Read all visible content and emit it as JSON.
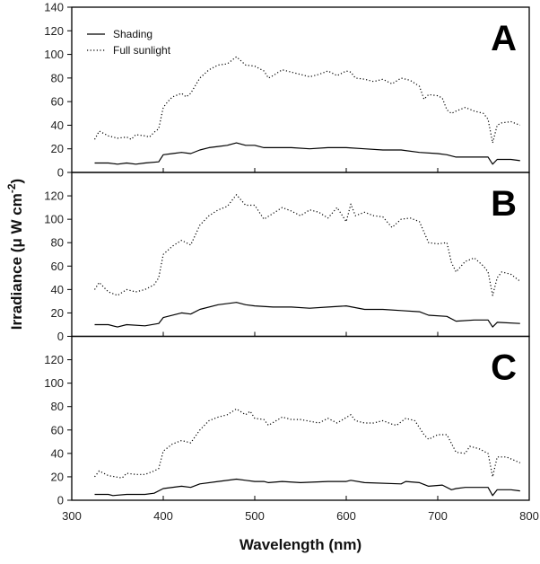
{
  "chart_data": {
    "type": "line",
    "xlabel": "Wavelength (nm)",
    "ylabel": "Irradiance (μ W cm",
    "ylabel_superscript": "-2",
    "ylabel_close": ")",
    "xlim": [
      300,
      800
    ],
    "xticks": [
      300,
      400,
      500,
      600,
      700,
      800
    ],
    "legend": {
      "placement": "top-left",
      "entries": [
        {
          "name": "Shading",
          "style": "solid"
        },
        {
          "name": "Full sunlight",
          "style": "dotted"
        }
      ]
    },
    "panels": [
      {
        "label": "A",
        "ylim": [
          0,
          140
        ],
        "yticks": [
          0,
          20,
          40,
          60,
          80,
          100,
          120,
          140
        ],
        "series": [
          {
            "name": "Shading",
            "style": "solid",
            "x": [
              325,
              340,
              350,
              360,
              370,
              380,
              395,
              400,
              410,
              420,
              430,
              440,
              450,
              460,
              470,
              480,
              490,
              500,
              510,
              520,
              540,
              560,
              580,
              600,
              620,
              640,
              660,
              680,
              700,
              710,
              720,
              740,
              755,
              760,
              765,
              780,
              790
            ],
            "y": [
              8,
              8,
              7,
              8,
              7,
              8,
              9,
              15,
              16,
              17,
              16,
              19,
              21,
              22,
              23,
              25,
              23,
              23,
              21,
              21,
              21,
              20,
              21,
              21,
              20,
              19,
              19,
              17,
              16,
              15,
              13,
              13,
              13,
              7,
              11,
              11,
              10
            ]
          },
          {
            "name": "Full sunlight",
            "style": "dotted",
            "x": [
              325,
              330,
              340,
              350,
              360,
              365,
              370,
              380,
              385,
              390,
              395,
              400,
              405,
              410,
              420,
              425,
              430,
              440,
              450,
              460,
              470,
              480,
              490,
              500,
              510,
              515,
              520,
              530,
              540,
              550,
              560,
              570,
              580,
              590,
              600,
              605,
              610,
              620,
              630,
              640,
              650,
              660,
              670,
              680,
              685,
              690,
              700,
              705,
              710,
              715,
              720,
              730,
              740,
              750,
              755,
              760,
              765,
              770,
              780,
              790
            ],
            "y": [
              28,
              35,
              31,
              29,
              30,
              28,
              32,
              31,
              30,
              34,
              37,
              55,
              60,
              64,
              67,
              64,
              67,
              80,
              87,
              91,
              92,
              98,
              91,
              90,
              86,
              80,
              82,
              87,
              85,
              83,
              81,
              83,
              86,
              82,
              86,
              85,
              80,
              79,
              77,
              79,
              75,
              80,
              78,
              73,
              62,
              66,
              65,
              63,
              53,
              50,
              52,
              55,
              52,
              50,
              45,
              25,
              40,
              42,
              43,
              40
            ]
          }
        ]
      },
      {
        "label": "B",
        "ylim": [
          0,
          140
        ],
        "yticks": [
          0,
          20,
          40,
          60,
          80,
          100,
          120
        ],
        "series": [
          {
            "name": "Shading",
            "style": "solid",
            "x": [
              325,
              340,
              350,
              360,
              380,
              395,
              400,
              420,
              430,
              440,
              460,
              480,
              490,
              500,
              520,
              540,
              560,
              580,
              600,
              620,
              640,
              660,
              680,
              690,
              710,
              720,
              740,
              755,
              760,
              765,
              790
            ],
            "y": [
              10,
              10,
              8,
              10,
              9,
              11,
              16,
              20,
              19,
              23,
              27,
              29,
              27,
              26,
              25,
              25,
              24,
              25,
              26,
              23,
              23,
              22,
              21,
              18,
              17,
              13,
              14,
              14,
              8,
              12,
              11
            ]
          },
          {
            "name": "Full sunlight",
            "style": "dotted",
            "x": [
              325,
              330,
              340,
              350,
              360,
              370,
              380,
              390,
              395,
              400,
              410,
              420,
              430,
              440,
              450,
              460,
              470,
              480,
              490,
              500,
              510,
              520,
              530,
              540,
              550,
              560,
              570,
              580,
              590,
              600,
              605,
              610,
              620,
              630,
              640,
              650,
              660,
              670,
              680,
              690,
              700,
              710,
              715,
              720,
              730,
              740,
              750,
              755,
              760,
              765,
              770,
              780,
              790
            ],
            "y": [
              40,
              46,
              38,
              35,
              40,
              38,
              40,
              44,
              50,
              70,
              77,
              82,
              78,
              95,
              103,
              108,
              111,
              121,
              112,
              112,
              100,
              105,
              110,
              107,
              103,
              108,
              106,
              101,
              110,
              98,
              113,
              103,
              106,
              103,
              102,
              93,
              100,
              101,
              98,
              80,
              79,
              80,
              63,
              55,
              64,
              67,
              60,
              55,
              35,
              50,
              55,
              53,
              47
            ]
          }
        ]
      },
      {
        "label": "C",
        "ylim": [
          0,
          140
        ],
        "yticks": [
          0,
          20,
          40,
          60,
          80,
          100,
          120
        ],
        "series": [
          {
            "name": "Shading",
            "style": "solid",
            "x": [
              325,
              340,
              345,
              360,
              380,
              390,
              400,
              420,
              430,
              440,
              460,
              480,
              490,
              500,
              510,
              515,
              530,
              550,
              580,
              600,
              605,
              620,
              660,
              665,
              680,
              690,
              705,
              715,
              720,
              730,
              755,
              760,
              765,
              780,
              790
            ],
            "y": [
              5,
              5,
              4,
              5,
              5,
              6,
              10,
              12,
              11,
              14,
              16,
              18,
              17,
              16,
              16,
              15,
              16,
              15,
              16,
              16,
              17,
              15,
              14,
              16,
              15,
              12,
              13,
              9,
              10,
              11,
              11,
              4,
              9,
              9,
              8
            ]
          },
          {
            "name": "Full sunlight",
            "style": "dotted",
            "x": [
              325,
              330,
              340,
              355,
              360,
              370,
              380,
              390,
              395,
              400,
              410,
              420,
              430,
              440,
              450,
              460,
              470,
              480,
              490,
              495,
              500,
              510,
              515,
              530,
              540,
              550,
              570,
              580,
              590,
              605,
              610,
              620,
              630,
              640,
              650,
              655,
              665,
              675,
              685,
              690,
              700,
              710,
              720,
              730,
              735,
              745,
              755,
              760,
              765,
              775,
              790
            ],
            "y": [
              20,
              25,
              21,
              19,
              23,
              22,
              22,
              25,
              27,
              42,
              48,
              51,
              49,
              60,
              68,
              71,
              73,
              78,
              73,
              76,
              70,
              69,
              64,
              71,
              69,
              69,
              66,
              70,
              66,
              73,
              68,
              66,
              66,
              68,
              65,
              64,
              70,
              68,
              56,
              52,
              56,
              56,
              41,
              40,
              46,
              44,
              40,
              20,
              37,
              37,
              32
            ]
          }
        ]
      }
    ]
  }
}
